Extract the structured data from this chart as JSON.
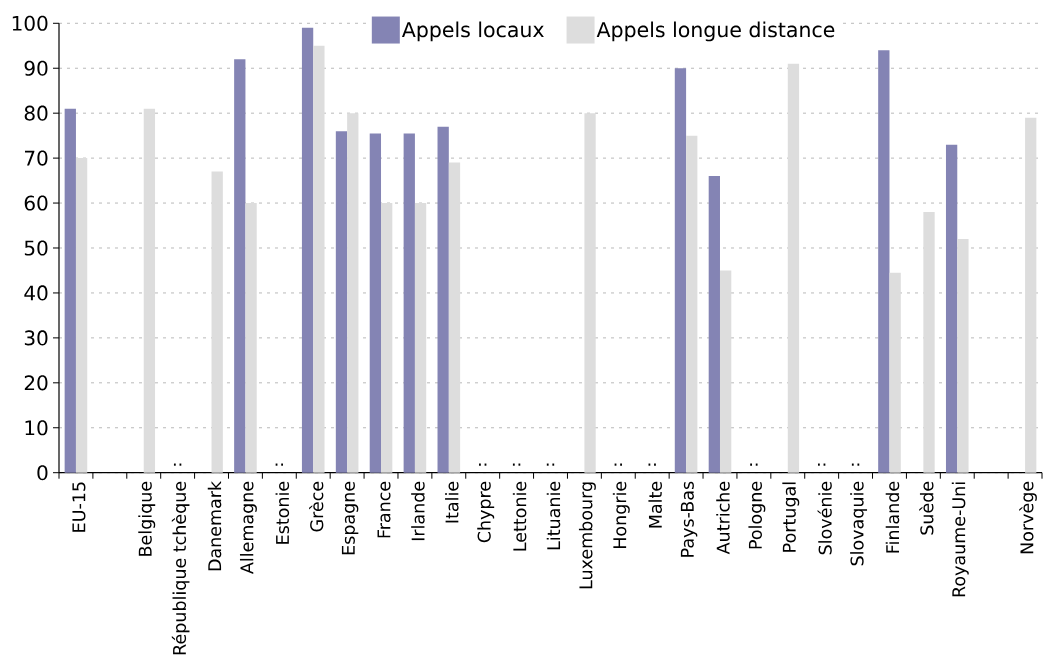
{
  "chart_data": {
    "type": "bar",
    "categories": [
      "EU-15",
      null,
      "Belgique",
      "République tchèque",
      "Danemark",
      "Allemagne",
      "Estonie",
      "Grèce",
      "Espagne",
      "France",
      "Irlande",
      "Italie",
      "Chypre",
      "Lettonie",
      "Lituanie",
      "Luxembourg",
      "Hongrie",
      "Malte",
      "Pays-Bas",
      "Autriche",
      "Pologne",
      "Portugal",
      "Slovénie",
      "Slovaquie",
      "Finlande",
      "Suède",
      "Royaume-Uni",
      null,
      "Norvège"
    ],
    "series": [
      {
        "name": "Appels locaux",
        "color": "#8484b4",
        "values": [
          81,
          null,
          null,
          null,
          null,
          92,
          null,
          99,
          76,
          75.5,
          75.5,
          77,
          null,
          null,
          null,
          null,
          null,
          null,
          90,
          66,
          null,
          null,
          null,
          null,
          94,
          null,
          73,
          null,
          null
        ]
      },
      {
        "name": "Appels longue distance",
        "color": "#dddddd",
        "values": [
          70,
          null,
          81,
          null,
          67,
          60,
          null,
          95,
          80,
          60,
          60,
          69,
          null,
          null,
          null,
          80,
          null,
          null,
          75,
          45,
          null,
          91,
          null,
          null,
          44.5,
          58,
          52,
          null,
          79
        ]
      }
    ],
    "ylim": [
      0,
      100
    ],
    "yticks": [
      0,
      10,
      20,
      30,
      40,
      50,
      60,
      70,
      80,
      90,
      100
    ],
    "grid": "y",
    "legend": "top",
    "annotations": [
      "..",
      "..",
      "..",
      "..",
      "..",
      "..",
      "..",
      "..",
      "..",
      ".."
    ]
  }
}
